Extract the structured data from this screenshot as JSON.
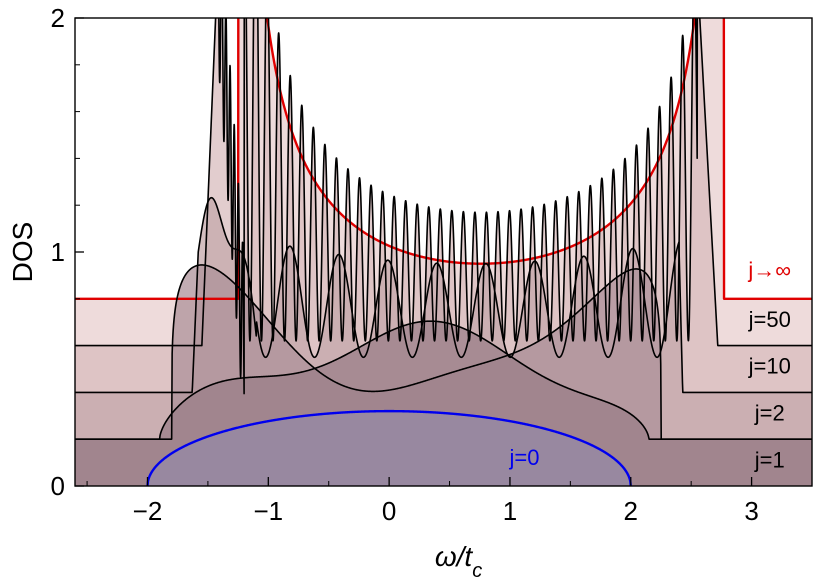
{
  "chart_data": {
    "type": "line",
    "xlabel": {
      "main": "ω/t",
      "sub": "c"
    },
    "ylabel": "DOS",
    "xlim": [
      -2.6,
      3.5
    ],
    "ylim": [
      0,
      2
    ],
    "x_ticks": [
      {
        "value": -2,
        "label": "−2"
      },
      {
        "value": -1,
        "label": "−1"
      },
      {
        "value": 0,
        "label": "0"
      },
      {
        "value": 1,
        "label": "1"
      },
      {
        "value": 2,
        "label": "2"
      },
      {
        "value": 3,
        "label": "3"
      }
    ],
    "y_ticks": [
      {
        "value": 0,
        "label": "0"
      },
      {
        "value": 1,
        "label": "1"
      },
      {
        "value": 2,
        "label": "2"
      }
    ],
    "grid": false,
    "series": [
      {
        "name": "j→∞",
        "label": "j→∞",
        "color": "#e00000",
        "fill": "#e8cfcf",
        "label_at": [
          3.15,
          0.89
        ]
      },
      {
        "name": "j=50",
        "label": "j=50",
        "color": "#000000",
        "fill": "#d8bcbd",
        "label_at": [
          3.15,
          0.68
        ]
      },
      {
        "name": "j=10",
        "label": "j=10",
        "color": "#000000",
        "fill": "#c4a8ab",
        "label_at": [
          3.15,
          0.48
        ]
      },
      {
        "name": "j=2",
        "label": "j=2",
        "color": "#000000",
        "fill": "#ad9199",
        "label_at": [
          3.15,
          0.28
        ]
      },
      {
        "name": "j=1",
        "label": "j=1",
        "color": "#000000",
        "fill": "#9b7f88",
        "label_at": [
          3.15,
          0.08
        ]
      },
      {
        "name": "j=0",
        "label": "j=0",
        "color": "#0000ee",
        "fill": "#9689a6",
        "label_at": [
          1.12,
          0.09
        ]
      }
    ]
  }
}
